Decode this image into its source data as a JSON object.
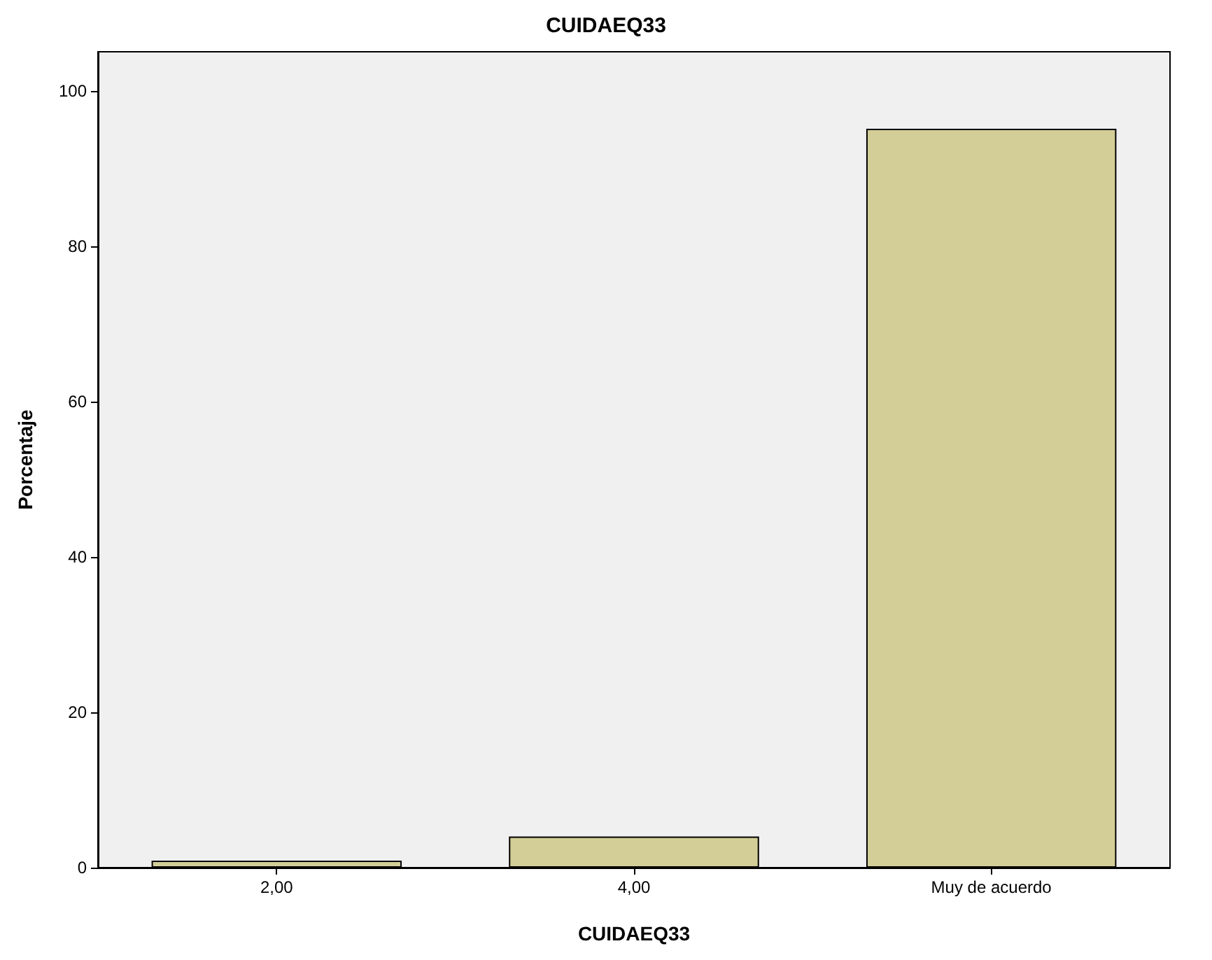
{
  "chart_data": {
    "type": "bar",
    "title": "CUIDAEQ33",
    "xlabel": "CUIDAEQ33",
    "ylabel": "Porcentaje",
    "categories": [
      "2,00",
      "4,00",
      "Muy de acuerdo"
    ],
    "values": [
      0.9,
      4.0,
      95.1
    ],
    "color": "#d3ce97",
    "ylim": [
      0,
      105
    ],
    "yticks": [
      0,
      20,
      40,
      60,
      80,
      100
    ],
    "grid": false
  }
}
